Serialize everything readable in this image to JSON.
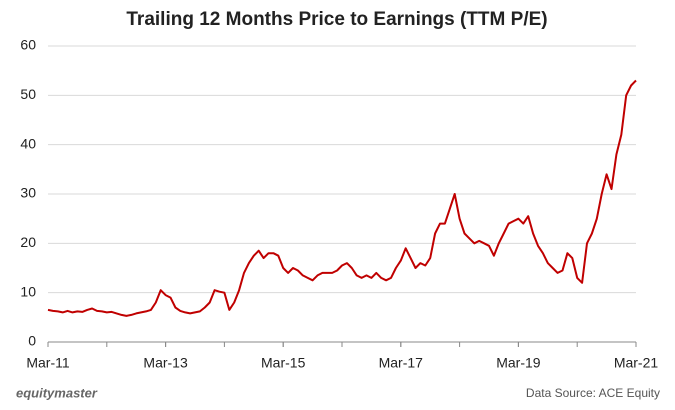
{
  "chart_data": {
    "type": "line",
    "title": "Trailing 12 Months Price to Earnings (TTM P/E)",
    "x": [
      "2011-03",
      "2011-04",
      "2011-05",
      "2011-06",
      "2011-07",
      "2011-08",
      "2011-09",
      "2011-10",
      "2011-11",
      "2011-12",
      "2012-01",
      "2012-02",
      "2012-03",
      "2012-04",
      "2012-05",
      "2012-06",
      "2012-07",
      "2012-08",
      "2012-09",
      "2012-10",
      "2012-11",
      "2012-12",
      "2013-01",
      "2013-02",
      "2013-03",
      "2013-04",
      "2013-05",
      "2013-06",
      "2013-07",
      "2013-08",
      "2013-09",
      "2013-10",
      "2013-11",
      "2013-12",
      "2014-01",
      "2014-02",
      "2014-03",
      "2014-04",
      "2014-05",
      "2014-06",
      "2014-07",
      "2014-08",
      "2014-09",
      "2014-10",
      "2014-11",
      "2014-12",
      "2015-01",
      "2015-02",
      "2015-03",
      "2015-04",
      "2015-05",
      "2015-06",
      "2015-07",
      "2015-08",
      "2015-09",
      "2015-10",
      "2015-11",
      "2015-12",
      "2016-01",
      "2016-02",
      "2016-03",
      "2016-04",
      "2016-05",
      "2016-06",
      "2016-07",
      "2016-08",
      "2016-09",
      "2016-10",
      "2016-11",
      "2016-12",
      "2017-01",
      "2017-02",
      "2017-03",
      "2017-04",
      "2017-05",
      "2017-06",
      "2017-07",
      "2017-08",
      "2017-09",
      "2017-10",
      "2017-11",
      "2017-12",
      "2018-01",
      "2018-02",
      "2018-03",
      "2018-04",
      "2018-05",
      "2018-06",
      "2018-07",
      "2018-08",
      "2018-09",
      "2018-10",
      "2018-11",
      "2018-12",
      "2019-01",
      "2019-02",
      "2019-03",
      "2019-04",
      "2019-05",
      "2019-06",
      "2019-07",
      "2019-08",
      "2019-09",
      "2019-10",
      "2019-11",
      "2019-12",
      "2020-01",
      "2020-02",
      "2020-03",
      "2020-04",
      "2020-05",
      "2020-06",
      "2020-07",
      "2020-08",
      "2020-09",
      "2020-10",
      "2020-11",
      "2020-12",
      "2021-01",
      "2021-02",
      "2021-03"
    ],
    "series": [
      {
        "name": "TTM P/E",
        "color": "#c00000",
        "values": [
          6.5,
          6.3,
          6.2,
          6,
          6.3,
          6,
          6.2,
          6.1,
          6.5,
          6.8,
          6.3,
          6.2,
          6,
          6.1,
          5.8,
          5.5,
          5.3,
          5.5,
          5.8,
          6,
          6.2,
          6.5,
          8,
          10.5,
          9.5,
          9,
          7,
          6.3,
          6,
          5.8,
          6,
          6.2,
          7,
          8,
          10.5,
          10.2,
          10,
          6.5,
          8,
          10.5,
          14,
          16,
          17.5,
          18.5,
          17,
          18,
          18,
          17.5,
          15,
          14,
          15,
          14.5,
          13.5,
          13,
          12.5,
          13.5,
          14,
          14,
          14,
          14.5,
          15.5,
          16,
          15,
          13.5,
          13,
          13.5,
          13,
          14,
          13,
          12.5,
          13,
          15,
          16.5,
          19,
          17,
          15,
          16,
          15.5,
          17,
          22,
          24,
          24,
          27,
          30,
          25,
          22,
          21,
          20,
          20.5,
          20,
          19.5,
          17.5,
          20,
          22,
          24,
          24.5,
          25,
          24,
          25.5,
          22,
          19.5,
          18,
          16,
          15,
          14,
          14.5,
          18,
          17,
          13,
          12,
          20,
          22,
          25,
          30,
          34,
          31,
          38,
          42,
          50,
          52,
          53
        ]
      }
    ],
    "xlim": [
      "2011-03",
      "2021-03"
    ],
    "xticks": [
      {
        "value": "2011-03",
        "label": "Mar-11"
      },
      {
        "value": "2013-03",
        "label": "Mar-13"
      },
      {
        "value": "2015-03",
        "label": "Mar-15"
      },
      {
        "value": "2017-03",
        "label": "Mar-17"
      },
      {
        "value": "2019-03",
        "label": "Mar-19"
      },
      {
        "value": "2021-03",
        "label": "Mar-21"
      }
    ],
    "ylim": [
      0,
      60
    ],
    "yticks": [
      0,
      10,
      20,
      30,
      40,
      50,
      60
    ],
    "grid": true
  },
  "footer": {
    "brand": "equitymaster",
    "source": "Data Source: ACE Equity"
  }
}
